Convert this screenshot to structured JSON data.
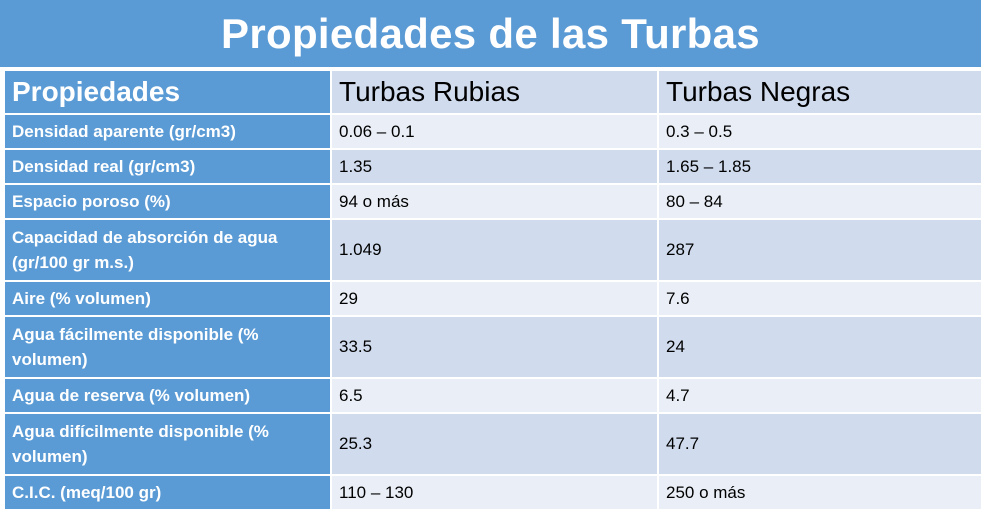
{
  "title": "Propiedades de las Turbas",
  "table": {
    "headers": [
      "Propiedades",
      "Turbas Rubias",
      "Turbas Negras"
    ],
    "rows": [
      {
        "prop": "Densidad  aparente (gr/cm3)",
        "rubias": "0.06 – 0.1",
        "negras": "0.3 – 0.5"
      },
      {
        "prop": "Densidad  real (gr/cm3)",
        "rubias": "1.35",
        "negras": "1.65 – 1.85"
      },
      {
        "prop": "Espacio  poroso  (%)",
        "rubias": "94 o más",
        "negras": "80 – 84"
      },
      {
        "prop": "Capacidad  de absorción  de  agua (gr/100 gr m.s.)",
        "rubias": "1.049",
        "negras": "287"
      },
      {
        "prop": "Aire (% volumen)",
        "rubias": "29",
        "negras": "7.6"
      },
      {
        "prop": "Agua fácilmente disponible  (% volumen)",
        "rubias": "33.5",
        "negras": "24"
      },
      {
        "prop": "Agua de reserva (% volumen)",
        "rubias": "6.5",
        "negras": "4.7"
      },
      {
        "prop": "Agua difícilmente disponible  (% volumen)",
        "rubias": "25.3",
        "negras": "47.7"
      },
      {
        "prop": "C.I.C. (meq/100 gr)",
        "rubias": "110 – 130",
        "negras": "250 o más"
      }
    ]
  }
}
